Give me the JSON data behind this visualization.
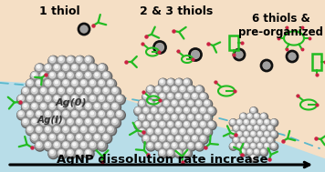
{
  "title": "AgNP dissolution rate increase",
  "label1": "1 thiol",
  "label2": "2 & 3 thiols",
  "label3": "6 thiols &\npre-organized",
  "ag0_label": "Ag(0)",
  "ag1_label": "Ag(I)",
  "bg_peach": "#f5dfc5",
  "bg_blue": "#b8dde8",
  "sphere_outer": "#606060",
  "sphere_mid": "#909090",
  "sphere_light": "#d0d0d0",
  "sphere_white": "#f5f5f5",
  "thiol_color": "#22bb22",
  "arrow_color": "#cc2244",
  "ring_edge": "#111111",
  "ring_fill": "#a0a0a0",
  "title_fontsize": 9.5,
  "label_fontsize": 8.5
}
